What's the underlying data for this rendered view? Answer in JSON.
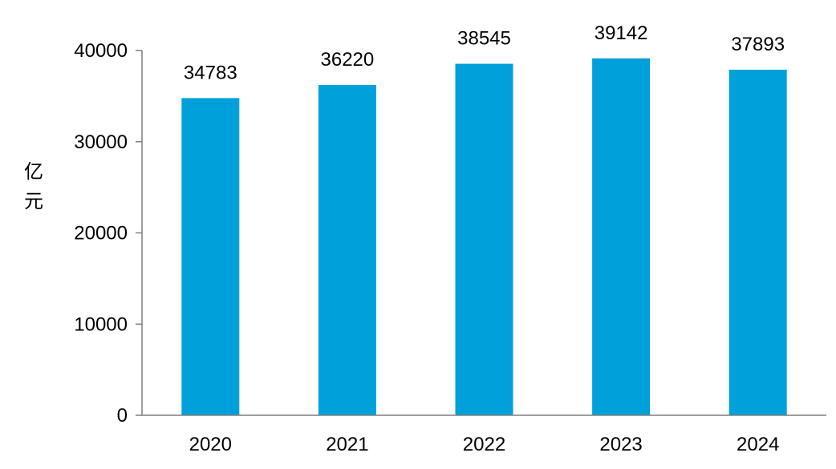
{
  "chart_data": {
    "type": "bar",
    "categories": [
      "2020",
      "2021",
      "2022",
      "2023",
      "2024"
    ],
    "values": [
      34783,
      36220,
      38545,
      39142,
      37893
    ],
    "data_labels": [
      "34783",
      "36220",
      "38545",
      "39142",
      "37893"
    ],
    "title": "",
    "xlabel": "",
    "ylabel": "亿元",
    "ylim": [
      0,
      40000
    ],
    "yticks": [
      0,
      10000,
      20000,
      30000,
      40000
    ],
    "ytick_labels": [
      "0",
      "10000",
      "20000",
      "30000",
      "40000"
    ],
    "grid": false,
    "legend": "none",
    "bar_color": "#00A1DA",
    "axis_color": "#7f7f7f"
  }
}
